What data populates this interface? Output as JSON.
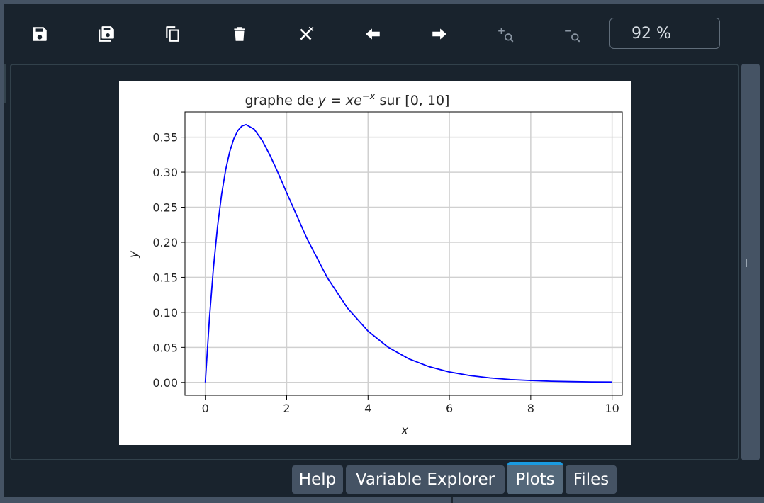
{
  "toolbar": {
    "buttons": [
      {
        "name": "save-plot-button",
        "icon": "save-icon",
        "disabled": false
      },
      {
        "name": "save-all-plots-button",
        "icon": "save-all-icon",
        "disabled": false
      },
      {
        "name": "copy-plot-button",
        "icon": "copy-icon",
        "disabled": false
      },
      {
        "name": "remove-plot-button",
        "icon": "trash-icon",
        "disabled": false
      },
      {
        "name": "remove-all-plots-button",
        "icon": "close-all-icon",
        "disabled": false
      },
      {
        "name": "previous-plot-button",
        "icon": "arrow-left-icon",
        "disabled": false
      },
      {
        "name": "next-plot-button",
        "icon": "arrow-right-icon",
        "disabled": false
      },
      {
        "name": "zoom-in-button",
        "icon": "zoom-in-icon",
        "disabled": true
      },
      {
        "name": "zoom-out-button",
        "icon": "zoom-out-icon",
        "disabled": true
      }
    ],
    "zoom_value": "92 %"
  },
  "tabs": [
    {
      "label": "Help",
      "active": false
    },
    {
      "label": "Variable Explorer",
      "active": false
    },
    {
      "label": "Plots",
      "active": true
    },
    {
      "label": "Files",
      "active": false
    }
  ],
  "colors": {
    "background": "#19232d",
    "frame": "#455364",
    "accent": "#1a9ae0",
    "curve": "#0000ff"
  },
  "chart_data": {
    "type": "line",
    "title_prefix": "graphe de ",
    "title_math": "y = xe",
    "title_exp": "−x",
    "title_suffix": " sur [0, 10]",
    "xlabel": "x",
    "ylabel": "y",
    "xlim": [
      -0.5,
      10.25
    ],
    "ylim": [
      -0.0184,
      0.386
    ],
    "x_ticks": [
      0,
      2,
      4,
      6,
      8,
      10
    ],
    "x_tick_labels": [
      "0",
      "2",
      "4",
      "6",
      "8",
      "10"
    ],
    "y_ticks": [
      0.0,
      0.05,
      0.1,
      0.15,
      0.2,
      0.25,
      0.3,
      0.35
    ],
    "y_tick_labels": [
      "0.00",
      "0.05",
      "0.10",
      "0.15",
      "0.20",
      "0.25",
      "0.30",
      "0.35"
    ],
    "grid": true,
    "series": [
      {
        "x": [
          0,
          0.1,
          0.2,
          0.3,
          0.4,
          0.5,
          0.6,
          0.7,
          0.8,
          0.9,
          1.0,
          1.2,
          1.4,
          1.6,
          1.8,
          2.0,
          2.5,
          3.0,
          3.5,
          4.0,
          4.5,
          5.0,
          5.5,
          6.0,
          6.5,
          7.0,
          7.5,
          8.0,
          8.5,
          9.0,
          9.5,
          10.0
        ],
        "y": [
          0.0,
          0.0905,
          0.1637,
          0.2222,
          0.2681,
          0.3033,
          0.3293,
          0.3476,
          0.3595,
          0.3659,
          0.3679,
          0.3614,
          0.3452,
          0.323,
          0.2975,
          0.2707,
          0.2052,
          0.1494,
          0.1057,
          0.0733,
          0.05,
          0.0337,
          0.0225,
          0.0149,
          0.0098,
          0.0064,
          0.0041,
          0.0027,
          0.0017,
          0.0011,
          0.0007,
          0.0005
        ]
      }
    ]
  }
}
